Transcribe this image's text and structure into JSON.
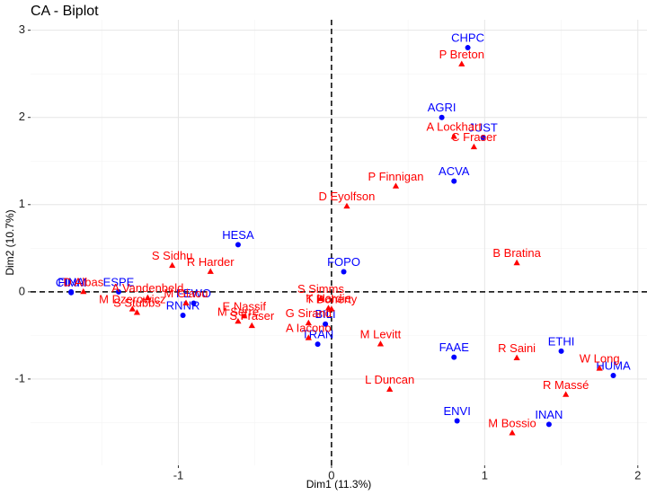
{
  "chart_data": {
    "type": "scatter",
    "title": "CA - Biplot",
    "x_label": "Dim1 (11.3%)",
    "y_label": "Dim2 (10.7%)",
    "xlim": [
      -1.965,
      2.06
    ],
    "ylim": [
      -1.99,
      3.12
    ],
    "xticks": [
      -1,
      0,
      1,
      2
    ],
    "yticks": [
      -1,
      0,
      1,
      2,
      3
    ],
    "grid": true,
    "series": [
      {
        "color": "#0000ff",
        "marker": "circle",
        "labels": [
          "CHPC",
          "AGRI",
          "JUST",
          "ACVA",
          "HESA",
          "FOPO",
          "FINA",
          "CIMM",
          "ESPE",
          "FEWO",
          "RNNR",
          "BILI",
          "TRAN",
          "FAAE",
          "ETHI",
          "HUMA",
          "ENVI",
          "INAN"
        ],
        "x": [
          0.89,
          0.72,
          0.99,
          0.8,
          -0.61,
          0.08,
          -1.7,
          -1.7,
          -1.39,
          -0.9,
          -0.97,
          -0.04,
          -0.09,
          0.8,
          1.5,
          1.84,
          0.82,
          1.42
        ],
        "values": [
          2.8,
          2.0,
          1.77,
          1.27,
          0.54,
          0.23,
          0.0,
          -0.01,
          0.0,
          -0.13,
          -0.27,
          -0.37,
          -0.6,
          -0.75,
          -0.68,
          -0.96,
          -1.48,
          -1.52
        ]
      },
      {
        "color": "#ff0000",
        "marker": "triangle",
        "labels": [
          "P Breton",
          "A Lockhart",
          "C Fraser",
          "P Finnigan",
          "D Eyolfson",
          "B Bratina",
          "S Sidhu",
          "R Harder",
          "D Albas",
          "A Vandenbeld",
          "M Dzerowicz",
          "S Stubbs",
          "M Glaou",
          "E Nassif",
          "M Serré",
          "S Fraser",
          "S Simms",
          "T Doherty",
          "K Hardie",
          "G Sirand",
          "A Iacono",
          "M Levitt",
          "L Duncan",
          "R Saini",
          "W Long",
          "R Massé",
          "M Bossio"
        ],
        "x": [
          0.85,
          0.8,
          0.93,
          0.42,
          0.1,
          1.21,
          -1.04,
          -0.79,
          -1.62,
          -1.2,
          -1.3,
          -1.27,
          -0.95,
          -0.57,
          -0.61,
          -0.52,
          -0.07,
          0.0,
          -0.02,
          -0.15,
          -0.15,
          0.32,
          0.38,
          1.21,
          1.75,
          1.53,
          1.18
        ],
        "values": [
          2.61,
          1.78,
          1.66,
          1.21,
          0.98,
          0.33,
          0.3,
          0.23,
          0.0,
          -0.07,
          -0.2,
          -0.24,
          -0.13,
          -0.28,
          -0.34,
          -0.39,
          -0.08,
          -0.2,
          -0.19,
          -0.36,
          -0.53,
          -0.6,
          -1.12,
          -0.76,
          -0.88,
          -1.18,
          -1.62
        ]
      }
    ]
  }
}
